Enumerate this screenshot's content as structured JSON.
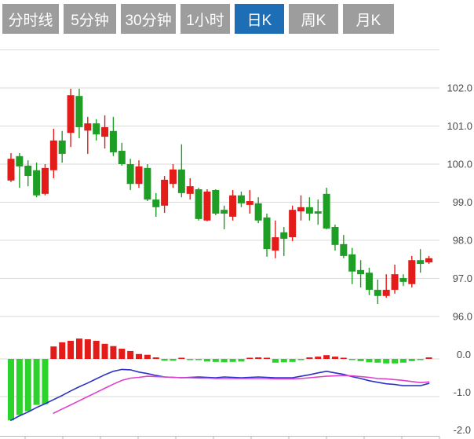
{
  "tabs": {
    "items": [
      {
        "label": "分时线",
        "active": false
      },
      {
        "label": "5分钟",
        "active": false
      },
      {
        "label": "30分钟",
        "active": false
      },
      {
        "label": "1小时",
        "active": false
      },
      {
        "label": "日K",
        "active": true
      },
      {
        "label": "周K",
        "active": false
      },
      {
        "label": "月K",
        "active": false
      }
    ]
  },
  "colors": {
    "up": "#e31c19",
    "down": "#1e9e24",
    "hist_up": "#e31c19",
    "hist_down": "#2bd32b",
    "dif": "#2b32c4",
    "dea": "#e040cc",
    "grid": "#d9d9d9",
    "axis_line": "#b8b8b8",
    "axis_text": "#4a4a4a",
    "tab_bg": "#9d9d9d",
    "tab_active_bg": "#1d6eb5",
    "tab_text": "#ffffff"
  },
  "chart_data": [
    {
      "type": "candlestick",
      "panel": "price",
      "title": "日K",
      "grid_extra": [
        103.0
      ],
      "y_axis": {
        "side": "right",
        "range": [
          95.9,
          103.0
        ],
        "ticks": [
          {
            "label": "102.0",
            "value": 102.0
          },
          {
            "label": "101.0",
            "value": 101.0
          },
          {
            "label": "100.0",
            "value": 100.0
          },
          {
            "label": "99.0",
            "value": 99.0
          },
          {
            "label": "98.0",
            "value": 98.0
          },
          {
            "label": "97.0",
            "value": 97.0
          },
          {
            "label": "96.0",
            "value": 96.0
          }
        ]
      },
      "candles": [
        {
          "o": 99.57,
          "h": 100.29,
          "l": 99.53,
          "c": 100.14
        },
        {
          "o": 100.21,
          "h": 100.29,
          "l": 99.38,
          "c": 99.94
        },
        {
          "o": 99.96,
          "h": 100.1,
          "l": 99.42,
          "c": 99.69
        },
        {
          "o": 99.84,
          "h": 100.04,
          "l": 99.13,
          "c": 99.18
        },
        {
          "o": 99.22,
          "h": 100.0,
          "l": 99.18,
          "c": 99.9
        },
        {
          "o": 99.84,
          "h": 100.93,
          "l": 99.63,
          "c": 100.62
        },
        {
          "o": 100.62,
          "h": 100.87,
          "l": 100.04,
          "c": 100.27
        },
        {
          "o": 100.82,
          "h": 101.98,
          "l": 100.45,
          "c": 101.81
        },
        {
          "o": 101.79,
          "h": 101.98,
          "l": 100.68,
          "c": 100.97
        },
        {
          "o": 100.88,
          "h": 101.24,
          "l": 100.27,
          "c": 101.07
        },
        {
          "o": 101.07,
          "h": 101.18,
          "l": 100.62,
          "c": 100.78
        },
        {
          "o": 100.72,
          "h": 101.28,
          "l": 100.41,
          "c": 100.97
        },
        {
          "o": 100.87,
          "h": 101.24,
          "l": 100.21,
          "c": 100.31
        },
        {
          "o": 100.35,
          "h": 100.56,
          "l": 99.96,
          "c": 100.0
        },
        {
          "o": 100.0,
          "h": 100.14,
          "l": 99.32,
          "c": 99.48
        },
        {
          "o": 99.48,
          "h": 100.1,
          "l": 99.38,
          "c": 99.94
        },
        {
          "o": 99.9,
          "h": 100.0,
          "l": 99.03,
          "c": 99.07
        },
        {
          "o": 99.07,
          "h": 99.24,
          "l": 98.62,
          "c": 98.87
        },
        {
          "o": 98.91,
          "h": 99.69,
          "l": 98.72,
          "c": 99.59
        },
        {
          "o": 99.48,
          "h": 100.0,
          "l": 99.38,
          "c": 99.86
        },
        {
          "o": 99.86,
          "h": 100.52,
          "l": 99.13,
          "c": 99.24
        },
        {
          "o": 99.22,
          "h": 99.63,
          "l": 99.07,
          "c": 99.42
        },
        {
          "o": 99.34,
          "h": 99.38,
          "l": 98.52,
          "c": 98.56
        },
        {
          "o": 98.52,
          "h": 99.34,
          "l": 98.5,
          "c": 99.28
        },
        {
          "o": 99.32,
          "h": 99.34,
          "l": 98.66,
          "c": 98.7
        },
        {
          "o": 98.8,
          "h": 98.91,
          "l": 98.29,
          "c": 98.7
        },
        {
          "o": 98.62,
          "h": 99.32,
          "l": 98.52,
          "c": 99.18
        },
        {
          "o": 99.18,
          "h": 99.28,
          "l": 98.87,
          "c": 98.97
        },
        {
          "o": 98.93,
          "h": 99.32,
          "l": 98.7,
          "c": 99.03
        },
        {
          "o": 98.97,
          "h": 99.13,
          "l": 98.45,
          "c": 98.52
        },
        {
          "o": 98.6,
          "h": 98.7,
          "l": 97.57,
          "c": 97.77
        },
        {
          "o": 97.73,
          "h": 98.52,
          "l": 97.53,
          "c": 98.08
        },
        {
          "o": 98.21,
          "h": 98.35,
          "l": 97.59,
          "c": 98.04
        },
        {
          "o": 98.08,
          "h": 98.91,
          "l": 97.98,
          "c": 98.8
        },
        {
          "o": 98.76,
          "h": 99.18,
          "l": 98.52,
          "c": 98.87
        },
        {
          "o": 98.87,
          "h": 99.13,
          "l": 98.52,
          "c": 98.7
        },
        {
          "o": 98.76,
          "h": 99.07,
          "l": 98.41,
          "c": 98.7
        },
        {
          "o": 99.22,
          "h": 99.38,
          "l": 98.29,
          "c": 98.31
        },
        {
          "o": 98.35,
          "h": 98.41,
          "l": 97.73,
          "c": 97.88
        },
        {
          "o": 97.9,
          "h": 98.14,
          "l": 97.53,
          "c": 97.59
        },
        {
          "o": 97.63,
          "h": 97.8,
          "l": 96.85,
          "c": 97.18
        },
        {
          "o": 97.22,
          "h": 97.48,
          "l": 96.76,
          "c": 97.11
        },
        {
          "o": 97.15,
          "h": 97.28,
          "l": 96.56,
          "c": 96.7
        },
        {
          "o": 96.7,
          "h": 96.97,
          "l": 96.33,
          "c": 96.54
        },
        {
          "o": 96.54,
          "h": 97.11,
          "l": 96.49,
          "c": 96.7
        },
        {
          "o": 96.7,
          "h": 97.36,
          "l": 96.6,
          "c": 97.11
        },
        {
          "o": 97.01,
          "h": 97.11,
          "l": 96.8,
          "c": 96.91
        },
        {
          "o": 96.85,
          "h": 97.59,
          "l": 96.76,
          "c": 97.48
        },
        {
          "o": 97.48,
          "h": 97.77,
          "l": 97.15,
          "c": 97.38
        },
        {
          "o": 97.42,
          "h": 97.59,
          "l": 97.38,
          "c": 97.53
        }
      ]
    },
    {
      "type": "macd",
      "panel": "indicator",
      "y_axis": {
        "side": "right",
        "range": [
          -2.1,
          0.6
        ],
        "ticks": [
          {
            "label": "0.0",
            "value": 0.0
          },
          {
            "label": "-1.0",
            "value": -1.0
          },
          {
            "label": "-2.0",
            "value": -2.0
          }
        ]
      },
      "histogram": [
        -1.63,
        -1.49,
        -1.39,
        -1.22,
        -1.2,
        0.33,
        0.44,
        0.48,
        0.54,
        0.52,
        0.48,
        0.4,
        0.34,
        0.27,
        0.21,
        0.13,
        0.11,
        0.04,
        -0.05,
        -0.05,
        0.03,
        -0.01,
        -0.02,
        -0.07,
        -0.08,
        -0.09,
        -0.08,
        -0.07,
        0.01,
        0.04,
        0.02,
        -0.1,
        -0.09,
        -0.08,
        -0.02,
        0.04,
        0.06,
        0.1,
        0.06,
        0.03,
        -0.03,
        -0.06,
        -0.09,
        -0.1,
        -0.12,
        -0.12,
        -0.1,
        -0.06,
        -0.03,
        0.04
      ],
      "dif": [
        -1.63,
        -1.51,
        -1.41,
        -1.29,
        -1.19,
        -1.08,
        -0.97,
        -0.85,
        -0.74,
        -0.64,
        -0.53,
        -0.42,
        -0.33,
        -0.28,
        -0.29,
        -0.35,
        -0.39,
        -0.44,
        -0.48,
        -0.49,
        -0.5,
        -0.49,
        -0.48,
        -0.49,
        -0.5,
        -0.48,
        -0.49,
        -0.5,
        -0.49,
        -0.48,
        -0.49,
        -0.5,
        -0.5,
        -0.5,
        -0.46,
        -0.42,
        -0.37,
        -0.33,
        -0.37,
        -0.41,
        -0.47,
        -0.52,
        -0.58,
        -0.62,
        -0.66,
        -0.68,
        -0.71,
        -0.71,
        -0.71,
        -0.65
      ],
      "dea": [
        null,
        null,
        null,
        null,
        null,
        -1.44,
        -1.33,
        -1.22,
        -1.11,
        -1.0,
        -0.89,
        -0.78,
        -0.67,
        -0.57,
        -0.51,
        -0.49,
        -0.46,
        -0.47,
        -0.48,
        -0.49,
        -0.5,
        -0.5,
        -0.51,
        -0.51,
        -0.52,
        -0.52,
        -0.52,
        -0.52,
        -0.52,
        -0.52,
        -0.52,
        -0.53,
        -0.53,
        -0.53,
        -0.52,
        -0.5,
        -0.48,
        -0.46,
        -0.45,
        -0.44,
        -0.45,
        -0.47,
        -0.49,
        -0.52,
        -0.53,
        -0.55,
        -0.57,
        -0.6,
        -0.63,
        -0.61
      ]
    }
  ]
}
